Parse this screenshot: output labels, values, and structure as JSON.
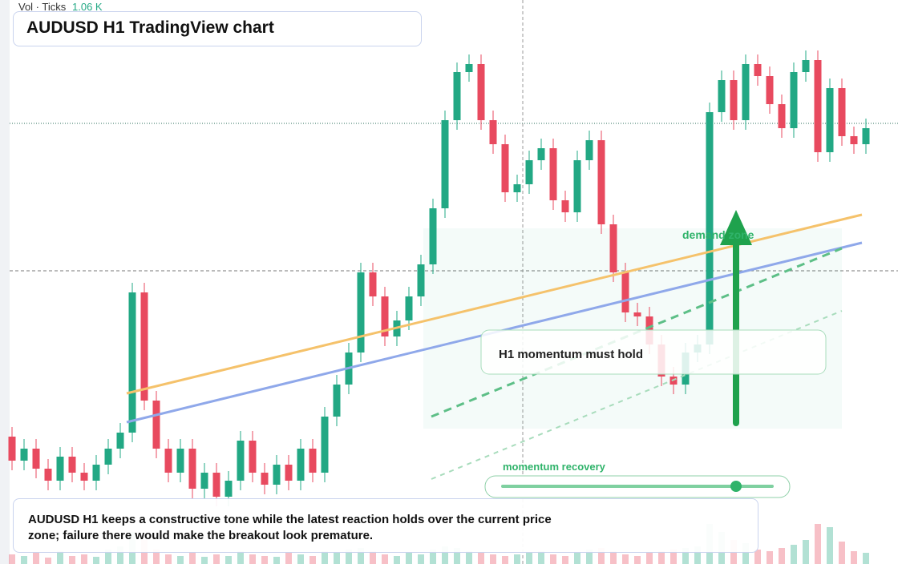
{
  "header": {
    "title": "AUDUSD H1 TradingView chart",
    "vol_label": "Vol · Ticks",
    "vol_value": "1.06 K"
  },
  "annotations": {
    "zone": "demand zone",
    "box": "H1 momentum must hold",
    "slider": "momentum recovery"
  },
  "caption": "AUDUSD H1 keeps a constructive tone while the latest reaction holds over the current price zone; failure there would make the breakout look premature.",
  "chart_data": {
    "type": "candlestick",
    "up_color": "#22a884",
    "down_color": "#e84a5f",
    "ylim": [
      0,
      704
    ],
    "volume_lim": [
      0,
      100
    ],
    "open": [
      159,
      129,
      144,
      119,
      104,
      134,
      114,
      104,
      124,
      144,
      164,
      339,
      204,
      144,
      114,
      144,
      94,
      114,
      84,
      104,
      154,
      114,
      99,
      124,
      104,
      144,
      114,
      184,
      224,
      264,
      364,
      334,
      284,
      304,
      334,
      374,
      444,
      554,
      614,
      624,
      554,
      524,
      464,
      474,
      504,
      519,
      454,
      439,
      504,
      529,
      424,
      364,
      314,
      309,
      274,
      234,
      224,
      264,
      274,
      564,
      604,
      554,
      624,
      609,
      574,
      544,
      614,
      629,
      514,
      594,
      534,
      524
    ],
    "high": [
      171,
      156,
      156,
      131,
      146,
      146,
      126,
      136,
      156,
      176,
      351,
      351,
      216,
      156,
      156,
      156,
      126,
      126,
      116,
      166,
      166,
      126,
      136,
      136,
      156,
      156,
      196,
      236,
      276,
      376,
      376,
      346,
      316,
      346,
      386,
      456,
      566,
      626,
      636,
      636,
      566,
      536,
      486,
      516,
      531,
      531,
      466,
      516,
      541,
      541,
      436,
      376,
      326,
      321,
      286,
      246,
      276,
      286,
      576,
      616,
      616,
      636,
      636,
      621,
      586,
      626,
      641,
      641,
      606,
      606,
      546,
      556
    ],
    "low": [
      117,
      117,
      107,
      92,
      92,
      102,
      92,
      92,
      112,
      132,
      152,
      192,
      132,
      102,
      102,
      82,
      82,
      72,
      72,
      92,
      102,
      87,
      87,
      92,
      92,
      102,
      102,
      172,
      212,
      252,
      322,
      272,
      272,
      292,
      322,
      362,
      432,
      542,
      602,
      542,
      512,
      452,
      452,
      462,
      492,
      442,
      427,
      427,
      492,
      412,
      352,
      302,
      297,
      262,
      222,
      212,
      212,
      252,
      262,
      552,
      542,
      542,
      597,
      562,
      532,
      532,
      602,
      502,
      502,
      522,
      512,
      512
    ],
    "close": [
      129,
      144,
      119,
      104,
      134,
      114,
      104,
      124,
      144,
      164,
      339,
      204,
      144,
      114,
      144,
      94,
      114,
      84,
      104,
      154,
      114,
      99,
      124,
      104,
      144,
      114,
      184,
      224,
      264,
      364,
      334,
      284,
      304,
      334,
      374,
      444,
      554,
      614,
      624,
      554,
      524,
      464,
      474,
      504,
      519,
      454,
      439,
      504,
      529,
      424,
      364,
      314,
      309,
      274,
      234,
      224,
      264,
      274,
      564,
      604,
      554,
      624,
      609,
      574,
      544,
      614,
      629,
      514,
      594,
      534,
      524,
      544
    ],
    "volume": [
      12,
      10,
      14,
      8,
      16,
      10,
      12,
      9,
      18,
      22,
      40,
      30,
      18,
      12,
      10,
      14,
      9,
      12,
      10,
      16,
      12,
      10,
      9,
      14,
      12,
      10,
      16,
      14,
      18,
      20,
      16,
      12,
      10,
      14,
      12,
      18,
      22,
      20,
      16,
      14,
      12,
      10,
      12,
      14,
      16,
      12,
      10,
      14,
      18,
      20,
      16,
      12,
      10,
      14,
      16,
      18,
      20,
      22,
      50,
      40,
      30,
      26,
      18,
      16,
      20,
      24,
      30,
      50,
      46,
      28,
      16,
      14
    ]
  }
}
